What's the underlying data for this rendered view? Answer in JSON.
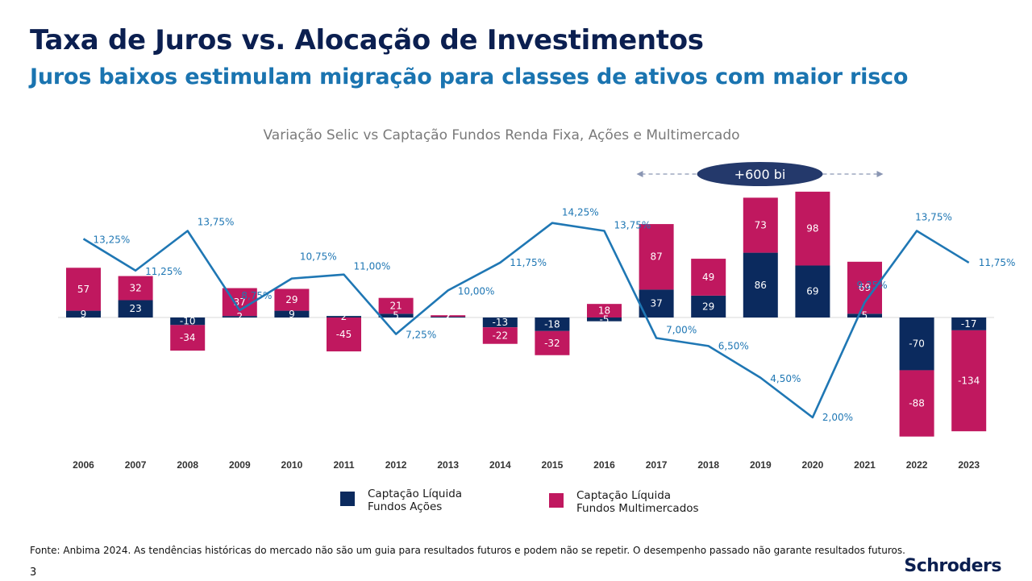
{
  "header": {
    "title": "Taxa de Juros vs. Alocação de Investimentos",
    "subtitle": "Juros baixos estimulam migração para classes de ativos com maior risco"
  },
  "colors": {
    "title": "#0b1f50",
    "subtitle": "#1a74b0",
    "acoes": "#0b2a5e",
    "multimercado": "#c0185f",
    "selic_line": "#1f77b4",
    "annotation": "#24396b"
  },
  "chart_data": {
    "type": "bar",
    "title": "Variação Selic vs Captação Fundos Renda Fixa, Ações e Multimercado",
    "categories": [
      "2006",
      "2007",
      "2008",
      "2009",
      "2010",
      "2011",
      "2012",
      "2013",
      "2014",
      "2015",
      "2016",
      "2017",
      "2018",
      "2019",
      "2020",
      "2021",
      "2022",
      "2023"
    ],
    "series": [
      {
        "name": "Captação Líquida Fundos Ações",
        "values": [
          9,
          23,
          -10,
          2,
          9,
          2,
          5,
          1,
          -13,
          -18,
          -5,
          37,
          29,
          86,
          69,
          5,
          -70,
          -17
        ],
        "labels": [
          "9",
          "23",
          "-10",
          "2",
          "9",
          "2",
          "5",
          "1",
          "-13",
          "-18",
          "-5",
          "37",
          "29",
          "86",
          "69",
          "5",
          "-70",
          "-17"
        ]
      },
      {
        "name": "Captação Líquida Fundos Multimercados",
        "values": [
          57,
          32,
          -34,
          37,
          29,
          -45,
          21,
          2,
          -22,
          -32,
          18,
          87,
          49,
          73,
          98,
          69,
          -88,
          -134
        ],
        "labels": [
          "57",
          "32",
          "-34",
          "37",
          "29",
          "-45",
          "21",
          "2",
          "-22",
          "-32",
          "18",
          "87",
          "49",
          "73",
          "98",
          "69",
          "-88",
          "-134"
        ]
      }
    ],
    "line": {
      "values": [
        13.25,
        11.25,
        13.75,
        8.75,
        10.75,
        11.0,
        7.25,
        10.0,
        11.75,
        14.25,
        13.75,
        7.0,
        6.5,
        4.5,
        2.0,
        9.25,
        13.75,
        11.75
      ],
      "labels": [
        "13,25%",
        "11,25%",
        "13,75%",
        "8,75%",
        "10,75%",
        "11,00%",
        "7,25%",
        "10,00%",
        "11,75%",
        "14,25%",
        "13,75%",
        "7,00%",
        "6,50%",
        "4,50%",
        "2,00%",
        "9,25%",
        "13,75%",
        "11,75%"
      ]
    },
    "annotation": {
      "text": "+600 bi",
      "from_category": "2016",
      "to_category": "2021"
    }
  },
  "legend": [
    {
      "label_line1": "Captação Líquida",
      "label_line2": "Fundos Ações"
    },
    {
      "label_line1": "Captação Líquida",
      "label_line2": "Fundos Multimercados"
    }
  ],
  "footer": {
    "source": "Fonte: Anbima 2024. As tendências históricas do mercado não são um guia para resultados futuros e podem não se repetir. O desempenho passado não garante resultados futuros.",
    "page_number": "3",
    "logo_text": "Schroders"
  }
}
